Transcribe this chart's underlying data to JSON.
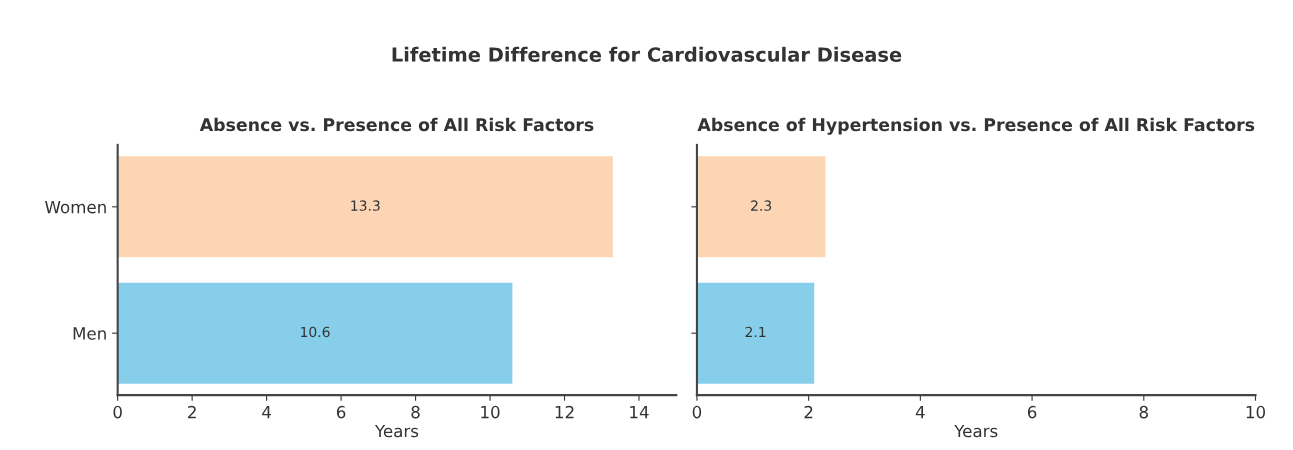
{
  "chart_data": [
    {
      "type": "bar",
      "orientation": "horizontal",
      "title": "Absence vs. Presence of All Risk Factors",
      "annotations": [
        "Lifetime Difference for Cardiovascular Disease"
      ],
      "xlabel": "Years",
      "categories": [
        "Women",
        "Men"
      ],
      "values": [
        13.3,
        10.6
      ],
      "colors": [
        "#fcd5b5",
        "#87ceeb"
      ],
      "xlim": [
        0,
        15
      ],
      "xticks": [
        0,
        2,
        4,
        6,
        8,
        10,
        12,
        14
      ],
      "data_labels": true,
      "grid": false,
      "legend": false
    },
    {
      "type": "bar",
      "orientation": "horizontal",
      "title": "Absence of Hypertension vs. Presence of All Risk Factors",
      "xlabel": "Years",
      "categories": [
        null,
        null
      ],
      "values": [
        2.3,
        2.1
      ],
      "colors": [
        "#fcd5b5",
        "#87ceeb"
      ],
      "xlim": [
        0,
        10
      ],
      "xticks": [
        0,
        2,
        4,
        6,
        8,
        10
      ],
      "data_labels": true,
      "grid": false,
      "legend": false
    }
  ]
}
